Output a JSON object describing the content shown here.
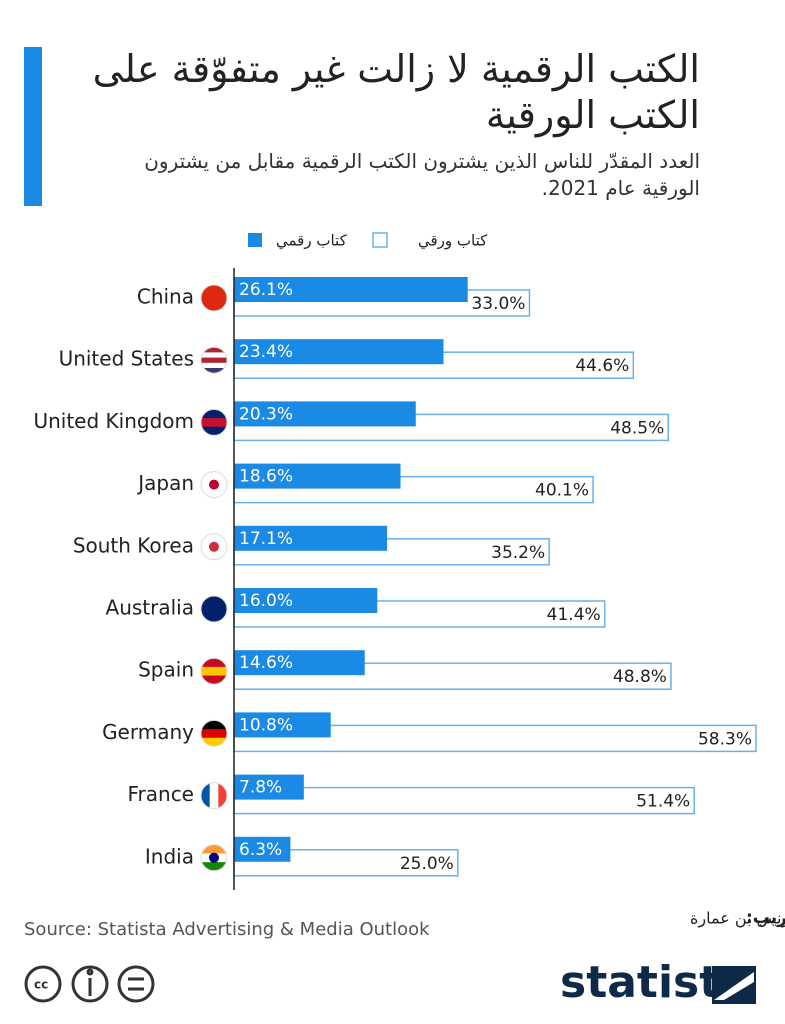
{
  "chart_data": {
    "type": "bar",
    "orientation": "horizontal",
    "title": "الكتب الرقمية لا زالت غير متفوّقة على الكتب الورقية",
    "subtitle": "العدد المقدّر للناس الذين يشترون الكتب الرقمية مقابل من يشترون الورقية عام 2021.",
    "categories": [
      "China",
      "United States",
      "United Kingdom",
      "Japan",
      "South Korea",
      "Australia",
      "Spain",
      "Germany",
      "France",
      "India"
    ],
    "series": [
      {
        "name": "كتاب رقمي",
        "color": "#1a8ae5",
        "values": [
          26.1,
          23.4,
          20.3,
          18.6,
          17.1,
          16.0,
          14.6,
          10.8,
          7.8,
          6.3
        ],
        "value_labels": [
          "26.1%",
          "23.4%",
          "20.3%",
          "18.6%",
          "17.1%",
          "16.0%",
          "14.6%",
          "10.8%",
          "7.8%",
          "6.3%"
        ]
      },
      {
        "name": "كتاب ورقي",
        "color": "#6ab0ea",
        "values": [
          33.0,
          44.6,
          48.5,
          40.1,
          35.2,
          41.4,
          48.8,
          58.3,
          51.4,
          25.0
        ],
        "value_labels": [
          "33.0%",
          "44.6%",
          "48.5%",
          "40.1%",
          "35.2%",
          "41.4%",
          "48.8%",
          "58.3%",
          "51.4%",
          "25.0%"
        ]
      }
    ],
    "source": "Source: Statista Advertising & Media Outlook",
    "credit_label": "تعريب:",
    "credit_name": "يونس بن عمارة",
    "brand": "statista"
  }
}
